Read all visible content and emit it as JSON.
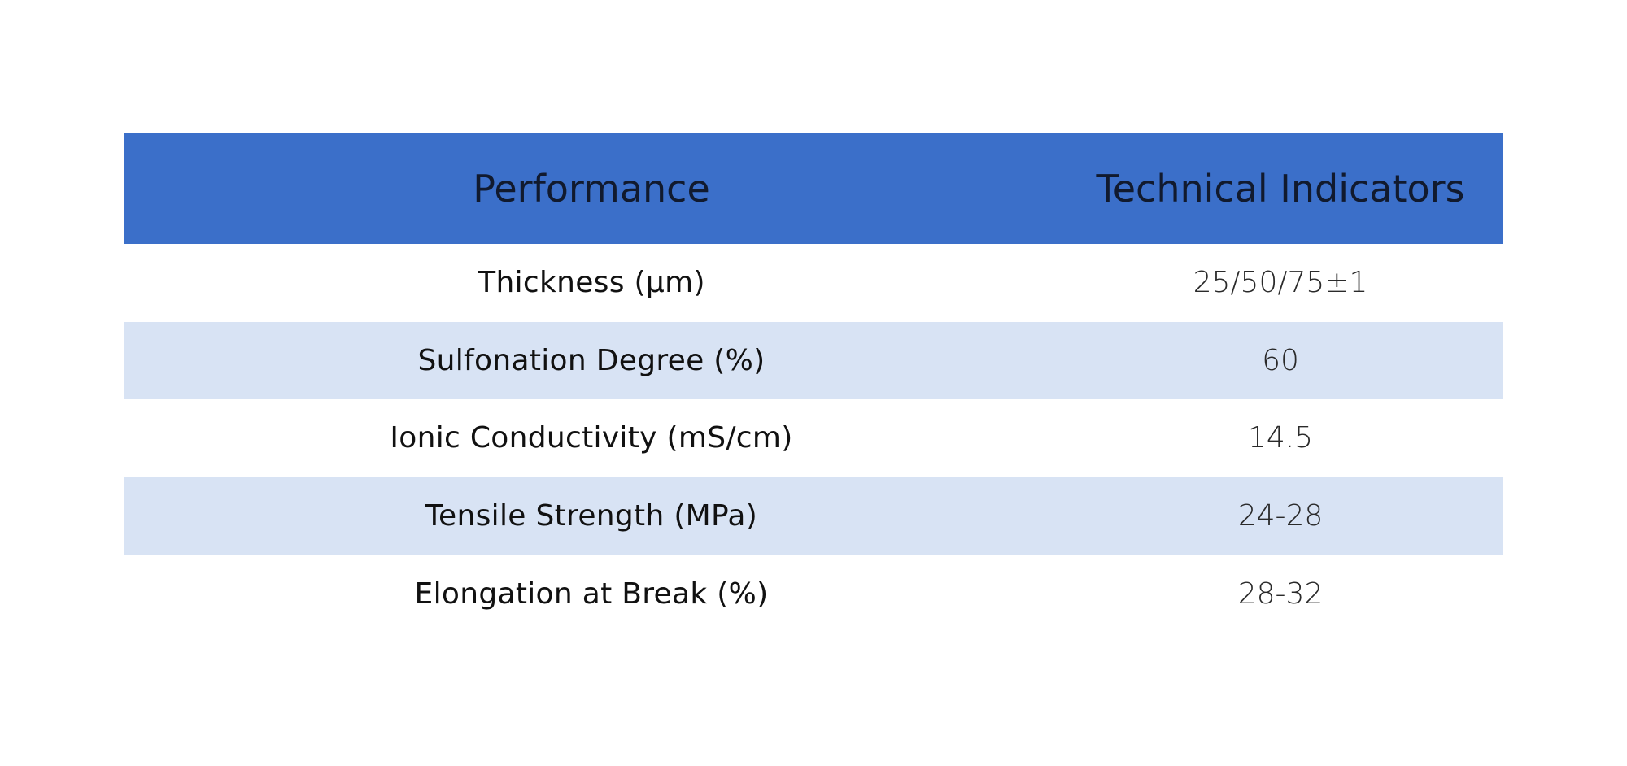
{
  "table": {
    "header": [
      "Performance",
      "Technical Indicators"
    ],
    "rows": [
      [
        "Thickness (µm)",
        "25/50/75±1"
      ],
      [
        "Sulfonation Degree (%)",
        "60"
      ],
      [
        "Ionic Conductivity (mS/cm)",
        "14.5"
      ],
      [
        "Tensile Strength (MPa)",
        "24-28"
      ],
      [
        "Elongation at Break (%)",
        "28-32"
      ]
    ]
  }
}
